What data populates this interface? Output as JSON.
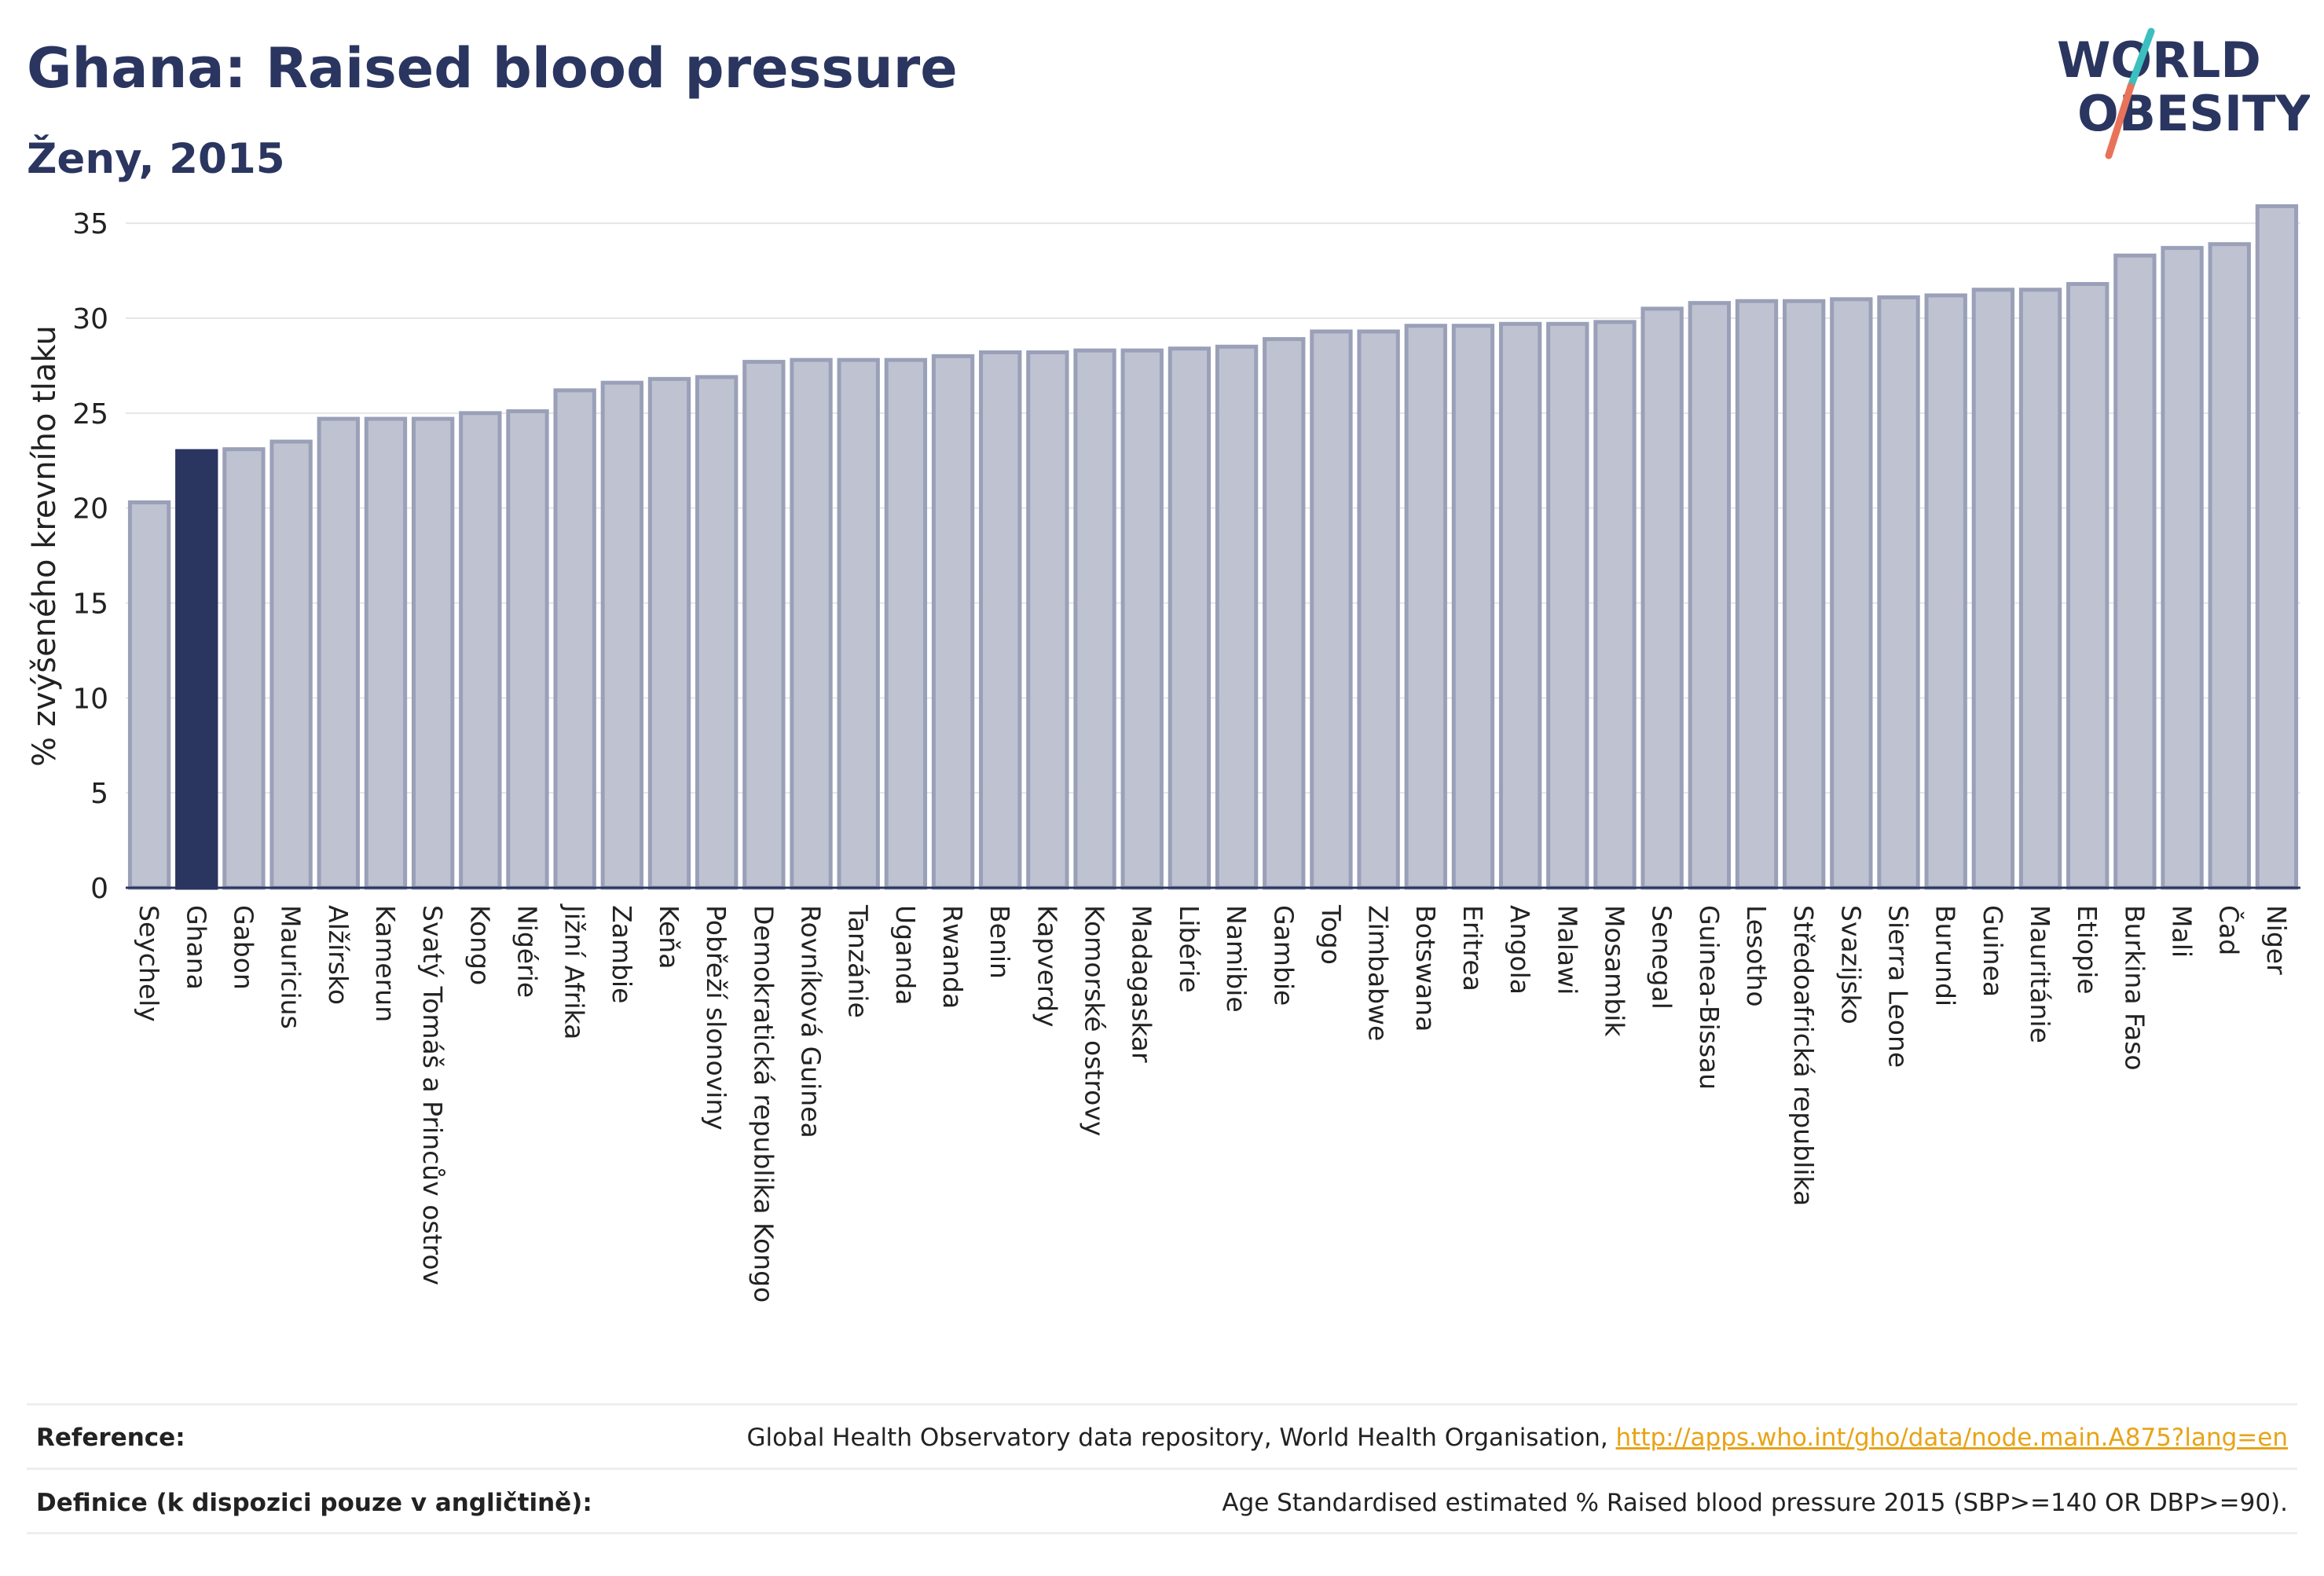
{
  "header": {
    "title": "Ghana: Raised blood pressure",
    "subtitle": "Ženy, 2015"
  },
  "logo": {
    "line1": "WORLD",
    "line2": "OBESITY",
    "colors": {
      "text": "#2a3560",
      "slash_teal": "#3bbfbf",
      "slash_coral": "#e8735a"
    }
  },
  "chart_data": {
    "type": "bar",
    "title": "",
    "xlabel": "",
    "ylabel": "% zvýšeného krevního tlaku",
    "ylim": [
      0,
      36
    ],
    "yticks": [
      0,
      5,
      10,
      15,
      20,
      25,
      30,
      35
    ],
    "grid": true,
    "highlight": "Ghana",
    "colors": {
      "bar": "#bfc3d1",
      "bar_edge": "#9aa0b8",
      "highlight": "#2a3560"
    },
    "categories": [
      "Seychely",
      "Ghana",
      "Gabon",
      "Mauricius",
      "Alžírsko",
      "Kamerun",
      "Svatý Tomáš a Princův ostrov",
      "Kongo",
      "Nigérie",
      "Jižní Afrika",
      "Zambie",
      "Keňa",
      "Pobřeží slonoviny",
      "Demokratická republika Kongo",
      "Rovníková Guinea",
      "Tanzánie",
      "Uganda",
      "Rwanda",
      "Benin",
      "Kapverdy",
      "Komorské ostrovy",
      "Madagaskar",
      "Libérie",
      "Namibie",
      "Gambie",
      "Togo",
      "Zimbabwe",
      "Botswana",
      "Eritrea",
      "Angola",
      "Malawi",
      "Mosambik",
      "Senegal",
      "Guinea-Bissau",
      "Lesotho",
      "Středoafrická republika",
      "Svazijsko",
      "Sierra Leone",
      "Burundi",
      "Guinea",
      "Mauritánie",
      "Etiopie",
      "Burkina Faso",
      "Mali",
      "Čad",
      "Niger"
    ],
    "values": [
      20.3,
      23.0,
      23.1,
      23.5,
      24.7,
      24.7,
      24.7,
      25.0,
      25.1,
      26.2,
      26.6,
      26.8,
      26.9,
      27.7,
      27.8,
      27.8,
      27.8,
      28.0,
      28.2,
      28.2,
      28.3,
      28.3,
      28.4,
      28.5,
      28.9,
      29.3,
      29.3,
      29.6,
      29.6,
      29.7,
      29.7,
      29.8,
      30.5,
      30.8,
      30.9,
      30.9,
      31.0,
      31.1,
      31.2,
      31.5,
      31.5,
      31.8,
      33.3,
      33.7,
      33.9,
      35.9
    ]
  },
  "footer": {
    "reference_label": "Reference:",
    "reference_text": "Global Health Observatory data repository, World Health Organisation, ",
    "reference_link": "http://apps.who.int/gho/data/node.main.A875?lang=en",
    "definition_label": "Definice (k dispozici pouze v angličtině):",
    "definition_text": "Age Standardised estimated % Raised blood pressure 2015 (SBP>=140 OR DBP>=90)."
  }
}
